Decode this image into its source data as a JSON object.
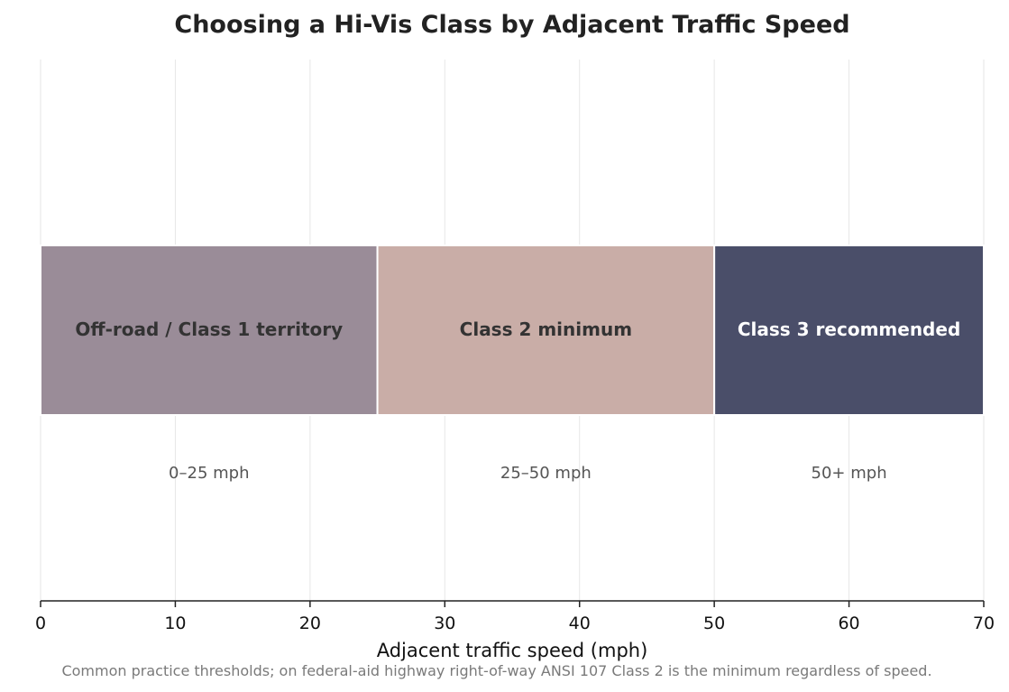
{
  "chart_data": {
    "type": "bar",
    "orientation": "horizontal-stacked-ranges",
    "title": "Choosing a Hi-Vis Class by Adjacent Traffic Speed",
    "xlabel": "Adjacent traffic speed (mph)",
    "xlim": [
      0,
      70
    ],
    "xticks": [
      0,
      10,
      20,
      30,
      40,
      50,
      60,
      70
    ],
    "grid": "vertical",
    "bands": [
      {
        "start": 0,
        "end": 25,
        "label": "Off-road / Class 1 territory",
        "range_label": "0–25 mph",
        "color": "#9a8c98",
        "text_color": "#333333"
      },
      {
        "start": 25,
        "end": 50,
        "label": "Class 2 minimum",
        "range_label": "25–50 mph",
        "color": "#c9ada7",
        "text_color": "#333333"
      },
      {
        "start": 50,
        "end": 70,
        "label": "Class 3 recommended",
        "range_label": "50+ mph",
        "color": "#4a4e69",
        "text_color": "#ffffff"
      }
    ],
    "footnote": "Common practice thresholds; on federal-aid highway right-of-way ANSI 107 Class 2 is the minimum regardless of speed."
  }
}
